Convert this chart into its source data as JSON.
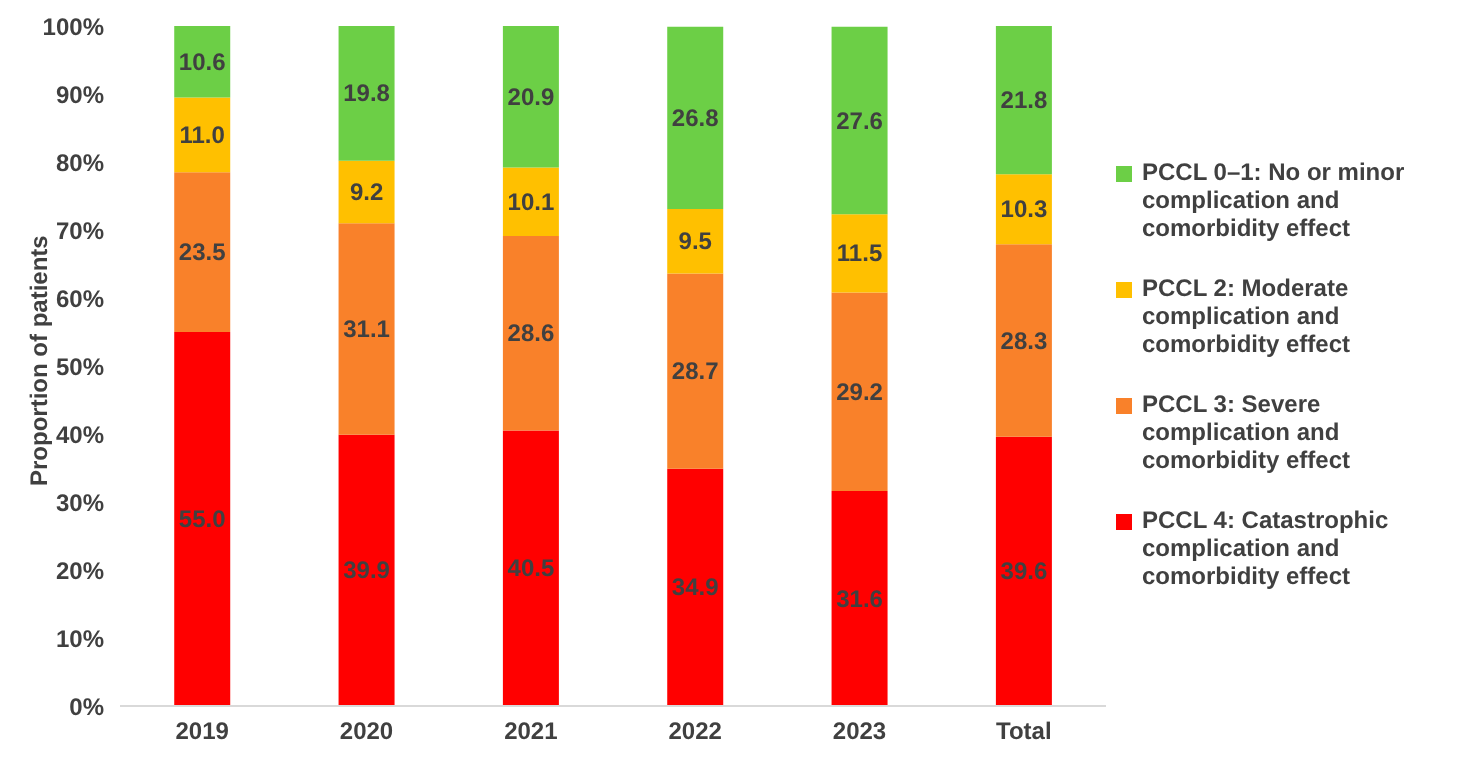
{
  "chart_data": {
    "type": "bar",
    "stacked": true,
    "ylabel": "Proportion of patients",
    "categories": [
      "2019",
      "2020",
      "2021",
      "2022",
      "2023",
      "Total"
    ],
    "series": [
      {
        "name": "PCCL 4: Catastrophic complication and comorbidity effect",
        "color": "#ff0000",
        "values": [
          55.0,
          39.9,
          40.5,
          34.9,
          31.6,
          39.6
        ],
        "value_labels": [
          "55.0",
          "39.9",
          "40.5",
          "34.9",
          "31.6",
          "39.6"
        ]
      },
      {
        "name": "PCCL 3: Severe complication and comorbidity effect",
        "color": "#f9812a",
        "values": [
          23.5,
          31.1,
          28.6,
          28.7,
          29.2,
          28.3
        ],
        "value_labels": [
          "23.5",
          "31.1",
          "28.6",
          "28.7",
          "29.2",
          "28.3"
        ]
      },
      {
        "name": "PCCL 2: Moderate complication and comorbidity effect",
        "color": "#ffc000",
        "values": [
          11.0,
          9.2,
          10.1,
          9.5,
          11.5,
          10.3
        ],
        "value_labels": [
          "11.0",
          "9.2",
          "10.1",
          "9.5",
          "11.5",
          "10.3"
        ]
      },
      {
        "name": "PCCL 0–1: No or minor complication and comorbidity effect",
        "color": "#6ccf46",
        "values": [
          10.6,
          19.8,
          20.9,
          26.8,
          27.6,
          21.8
        ],
        "value_labels": [
          "10.6",
          "19.8",
          "20.9",
          "26.8",
          "27.6",
          "21.8"
        ]
      }
    ],
    "ylim": [
      0,
      100
    ],
    "yticks": [
      {
        "value": 0,
        "label": "0%"
      },
      {
        "value": 10,
        "label": "10%"
      },
      {
        "value": 20,
        "label": "20%"
      },
      {
        "value": 30,
        "label": "30%"
      },
      {
        "value": 40,
        "label": "40%"
      },
      {
        "value": 50,
        "label": "50%"
      },
      {
        "value": 60,
        "label": "60%"
      },
      {
        "value": 70,
        "label": "70%"
      },
      {
        "value": 80,
        "label": "80%"
      },
      {
        "value": 90,
        "label": "90%"
      },
      {
        "value": 100,
        "label": "100%"
      }
    ],
    "grid": false,
    "legend": "right"
  }
}
